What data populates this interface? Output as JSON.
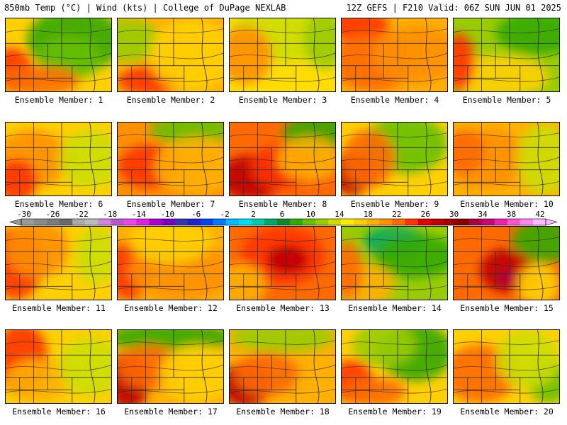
{
  "header": {
    "left": "850mb Temp (°C) | Wind (kts) | College of DuPage NEXLAB",
    "right": "12Z GEFS | F210 Valid: 06Z SUN JUN 01 2025"
  },
  "colorbar": {
    "labels": [
      "-30",
      "-26",
      "-22",
      "-18",
      "-14",
      "-10",
      "-6",
      "-2",
      "2",
      "6",
      "10",
      "14",
      "18",
      "22",
      "26",
      "30",
      "34",
      "38",
      "42"
    ],
    "colors": [
      "#9a9a9a",
      "#8a8a8a",
      "#7a7a7a",
      "#6a6a6a",
      "#aaaaaa",
      "#bbbbbb",
      "#cc88dd",
      "#bb55cc",
      "#ee44ee",
      "#dd22dd",
      "#aa00cc",
      "#7700bb",
      "#3333aa",
      "#2222cc",
      "#0044ee",
      "#0077ff",
      "#00bbff",
      "#00ddee",
      "#00ccaa",
      "#00aa66",
      "#118822",
      "#33aa00",
      "#66c000",
      "#99cc00",
      "#ccdd00",
      "#ffee00",
      "#ffd000",
      "#ffb000",
      "#ff9000",
      "#ff6a00",
      "#ff3300",
      "#e00000",
      "#c00000",
      "#a00000",
      "#880000",
      "#aa0044",
      "#cc0077",
      "#ee22aa",
      "#ff55cc",
      "#ff88ee",
      "#ffbbff"
    ]
  },
  "panels": [
    {
      "label": "Ensemble Member: 1",
      "base": "#ffd000",
      "blobs": [
        [
          "#33aa00",
          0.65,
          0.3,
          0.45,
          0.45
        ],
        [
          "#66c000",
          0.6,
          0.55,
          0.3,
          0.3
        ],
        [
          "#ff3300",
          0.05,
          0.7,
          0.2,
          0.3
        ],
        [
          "#ff6a00",
          0.3,
          0.85,
          0.4,
          0.2
        ]
      ]
    },
    {
      "label": "Ensemble Member: 2",
      "base": "#ffb000",
      "blobs": [
        [
          "#99cc00",
          0.1,
          0.3,
          0.3,
          0.3
        ],
        [
          "#ff3300",
          0.3,
          0.85,
          0.3,
          0.2
        ],
        [
          "#ffd000",
          0.7,
          0.5,
          0.4,
          0.5
        ]
      ]
    },
    {
      "label": "Ensemble Member: 3",
      "base": "#ffdd00",
      "blobs": [
        [
          "#ccdd00",
          0.5,
          0.2,
          0.5,
          0.4
        ],
        [
          "#ff9000",
          0.15,
          0.5,
          0.25,
          0.4
        ],
        [
          "#99cc00",
          0.9,
          0.3,
          0.2,
          0.4
        ]
      ]
    },
    {
      "label": "Ensemble Member: 4",
      "base": "#ffb000",
      "blobs": [
        [
          "#ff3300",
          0.15,
          0.1,
          0.3,
          0.2
        ],
        [
          "#ff6a00",
          0.3,
          0.6,
          0.4,
          0.4
        ],
        [
          "#ff9000",
          0.7,
          0.5,
          0.4,
          0.4
        ]
      ]
    },
    {
      "label": "Ensemble Member: 5",
      "base": "#99cc00",
      "blobs": [
        [
          "#33aa00",
          0.8,
          0.2,
          0.4,
          0.3
        ],
        [
          "#ffd000",
          0.4,
          0.8,
          0.5,
          0.3
        ],
        [
          "#ff3300",
          0.05,
          0.6,
          0.15,
          0.4
        ]
      ]
    },
    {
      "label": "Ensemble Member: 6",
      "base": "#ffd000",
      "blobs": [
        [
          "#ff9000",
          0.25,
          0.5,
          0.35,
          0.4
        ],
        [
          "#ff3300",
          0.1,
          0.8,
          0.2,
          0.3
        ],
        [
          "#ccdd00",
          0.8,
          0.5,
          0.3,
          0.4
        ]
      ]
    },
    {
      "label": "Ensemble Member: 7",
      "base": "#ff9000",
      "blobs": [
        [
          "#66c000",
          0.7,
          0.1,
          0.4,
          0.2
        ],
        [
          "#ff3300",
          0.3,
          0.6,
          0.3,
          0.3
        ],
        [
          "#ffb000",
          0.75,
          0.6,
          0.4,
          0.4
        ]
      ]
    },
    {
      "label": "Ensemble Member: 8",
      "base": "#ff6a00",
      "blobs": [
        [
          "#33aa00",
          0.85,
          0.15,
          0.35,
          0.25
        ],
        [
          "#c00000",
          0.2,
          0.75,
          0.3,
          0.3
        ],
        [
          "#ff3300",
          0.5,
          0.6,
          0.3,
          0.3
        ],
        [
          "#ffb000",
          0.75,
          0.5,
          0.3,
          0.3
        ]
      ]
    },
    {
      "label": "Ensemble Member: 9",
      "base": "#ffd000",
      "blobs": [
        [
          "#66c000",
          0.6,
          0.3,
          0.4,
          0.4
        ],
        [
          "#c00000",
          0.1,
          0.7,
          0.2,
          0.3
        ],
        [
          "#ff6a00",
          0.25,
          0.5,
          0.25,
          0.4
        ]
      ]
    },
    {
      "label": "Ensemble Member: 10",
      "base": "#ffb000",
      "blobs": [
        [
          "#ff9000",
          0.3,
          0.5,
          0.4,
          0.4
        ],
        [
          "#ccdd00",
          0.85,
          0.5,
          0.25,
          0.5
        ],
        [
          "#ff6a00",
          0.1,
          0.4,
          0.2,
          0.3
        ]
      ]
    },
    {
      "label": "Ensemble Member: 11",
      "base": "#ffd000",
      "blobs": [
        [
          "#ff3300",
          0.1,
          0.5,
          0.25,
          0.5
        ],
        [
          "#ff9000",
          0.3,
          0.3,
          0.3,
          0.4
        ],
        [
          "#ccdd00",
          0.85,
          0.4,
          0.2,
          0.4
        ]
      ]
    },
    {
      "label": "Ensemble Member: 12",
      "base": "#ffb000",
      "blobs": [
        [
          "#ff3300",
          0.1,
          0.6,
          0.2,
          0.4
        ],
        [
          "#ff9000",
          0.6,
          0.6,
          0.5,
          0.4
        ],
        [
          "#ffd000",
          0.5,
          0.2,
          0.4,
          0.3
        ]
      ]
    },
    {
      "label": "Ensemble Member: 13",
      "base": "#ff6a00",
      "blobs": [
        [
          "#ff3300",
          0.5,
          0.4,
          0.4,
          0.4
        ],
        [
          "#c00000",
          0.55,
          0.45,
          0.2,
          0.2
        ],
        [
          "#ffb000",
          0.1,
          0.8,
          0.25,
          0.3
        ]
      ]
    },
    {
      "label": "Ensemble Member: 14",
      "base": "#99cc00",
      "blobs": [
        [
          "#00aa66",
          0.5,
          0.2,
          0.3,
          0.2
        ],
        [
          "#33aa00",
          0.7,
          0.4,
          0.4,
          0.3
        ],
        [
          "#ffb000",
          0.2,
          0.8,
          0.3,
          0.3
        ],
        [
          "#ff6a00",
          0.05,
          0.6,
          0.15,
          0.4
        ]
      ]
    },
    {
      "label": "Ensemble Member: 15",
      "base": "#ff6a00",
      "blobs": [
        [
          "#33aa00",
          0.85,
          0.2,
          0.3,
          0.3
        ],
        [
          "#c00000",
          0.5,
          0.6,
          0.25,
          0.3
        ],
        [
          "#aa0044",
          0.5,
          0.7,
          0.08,
          0.1
        ],
        [
          "#ffd000",
          0.8,
          0.8,
          0.2,
          0.3
        ]
      ]
    },
    {
      "label": "Ensemble Member: 16",
      "base": "#ffd000",
      "blobs": [
        [
          "#ff3300",
          0.15,
          0.4,
          0.25,
          0.5
        ],
        [
          "#ffb000",
          0.3,
          0.7,
          0.3,
          0.3
        ],
        [
          "#ccdd00",
          0.8,
          0.5,
          0.3,
          0.4
        ]
      ]
    },
    {
      "label": "Ensemble Member: 17",
      "base": "#ffb000",
      "blobs": [
        [
          "#33aa00",
          0.5,
          0.1,
          0.6,
          0.2
        ],
        [
          "#c00000",
          0.1,
          0.7,
          0.2,
          0.4
        ],
        [
          "#ff6a00",
          0.3,
          0.5,
          0.3,
          0.3
        ],
        [
          "#ffd000",
          0.75,
          0.6,
          0.35,
          0.4
        ]
      ]
    },
    {
      "label": "Ensemble Member: 18",
      "base": "#ffb000",
      "blobs": [
        [
          "#99cc00",
          0.5,
          0.1,
          0.5,
          0.2
        ],
        [
          "#c00000",
          0.15,
          0.75,
          0.25,
          0.3
        ],
        [
          "#ff6a00",
          0.35,
          0.6,
          0.3,
          0.3
        ]
      ]
    },
    {
      "label": "Ensemble Member: 19",
      "base": "#ffd000",
      "blobs": [
        [
          "#33aa00",
          0.7,
          0.3,
          0.35,
          0.4
        ],
        [
          "#99cc00",
          0.4,
          0.2,
          0.3,
          0.3
        ],
        [
          "#ff3300",
          0.1,
          0.7,
          0.2,
          0.3
        ],
        [
          "#ff6a00",
          0.3,
          0.85,
          0.3,
          0.2
        ]
      ]
    },
    {
      "label": "Ensemble Member: 20",
      "base": "#ffd000",
      "blobs": [
        [
          "#ff6a00",
          0.25,
          0.6,
          0.35,
          0.4
        ],
        [
          "#66c000",
          0.9,
          0.7,
          0.2,
          0.3
        ],
        [
          "#ccdd00",
          0.7,
          0.4,
          0.3,
          0.4
        ]
      ]
    }
  ]
}
